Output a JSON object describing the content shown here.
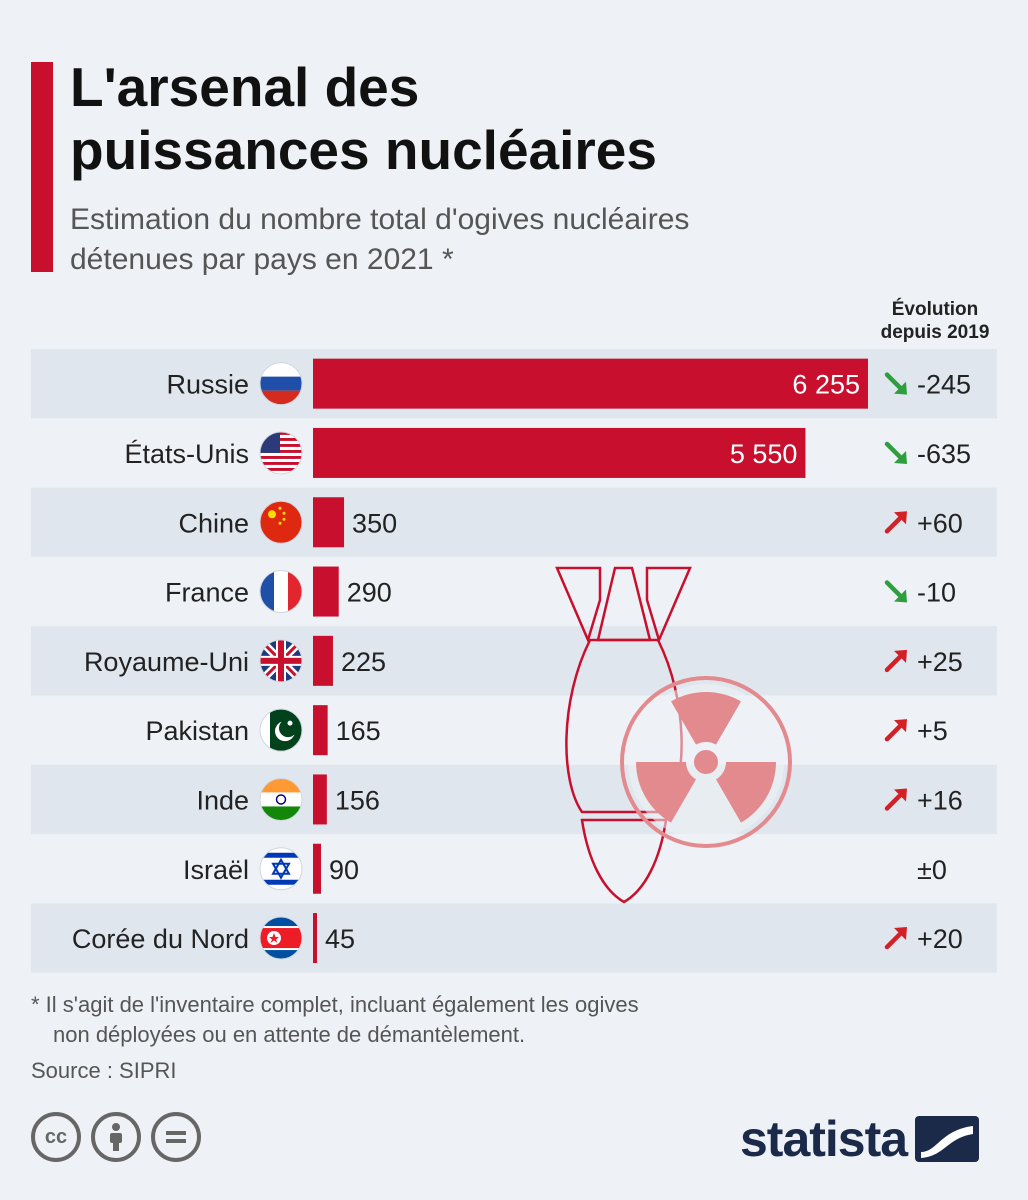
{
  "header": {
    "title_line1": "L'arsenal des",
    "title_line2": "puissances nucléaires",
    "subtitle_line1": "Estimation du nombre total d'ogives nucléaires",
    "subtitle_line2": "détenues par pays en 2021 *"
  },
  "evolution_header": {
    "line1": "Évolution",
    "line2": "depuis 2019"
  },
  "chart_data": {
    "type": "bar",
    "orientation": "horizontal",
    "title": "L'arsenal des puissances nucléaires",
    "subtitle": "Estimation du nombre total d'ogives nucléaires détenues par pays en 2021 *",
    "categories": [
      "Russie",
      "États-Unis",
      "Chine",
      "France",
      "Royaume-Uni",
      "Pakistan",
      "Inde",
      "Israël",
      "Corée du Nord"
    ],
    "values": [
      6255,
      5550,
      350,
      290,
      225,
      165,
      156,
      90,
      45
    ],
    "value_labels": [
      "6 255",
      "5 550",
      "350",
      "290",
      "225",
      "165",
      "156",
      "90",
      "45"
    ],
    "evolution": [
      "-245",
      "-635",
      "+60",
      "-10",
      "+25",
      "+5",
      "+16",
      "±0",
      "+20"
    ],
    "evolution_direction": [
      "down",
      "down",
      "up",
      "down",
      "up",
      "up",
      "up",
      "none",
      "up"
    ],
    "flags": [
      "russia-flag-icon",
      "usa-flag-icon",
      "china-flag-icon",
      "france-flag-icon",
      "uk-flag-icon",
      "pakistan-flag-icon",
      "india-flag-icon",
      "israel-flag-icon",
      "north-korea-flag-icon"
    ],
    "xlim": [
      0,
      6255
    ],
    "grid": false,
    "colors": {
      "bar": "#c8102e",
      "arrow_up": "#d32027",
      "arrow_down": "#2e9e3e",
      "row_band": "#e0e6ee"
    }
  },
  "footer": {
    "note_line1": "* Il s'agit de l'inventaire complet, incluant également les ogives",
    "note_line2": "non déployées ou en attente de démantèlement.",
    "source": "Source : SIPRI",
    "brand": "statista",
    "license_icons": [
      "creative-commons-icon",
      "attribution-icon",
      "no-derivatives-icon"
    ]
  }
}
